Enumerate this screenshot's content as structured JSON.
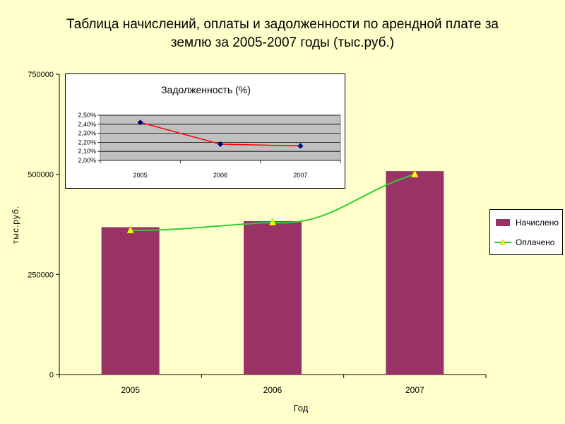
{
  "title": {
    "line1": "Таблица начислений, оплаты и задолженности по арендной плате за",
    "line2": "землю за 2005-2007 годы (тыс.руб.)"
  },
  "colors": {
    "background": "#ffffcc",
    "bar": "#993366",
    "line": "#33cc33",
    "marker": "#ffff00",
    "inset_line": "#ff0000",
    "inset_marker": "#000080",
    "inset_plot": "#c0c0c0"
  },
  "chart_data": [
    {
      "type": "bar",
      "categories": [
        "2005",
        "2006",
        "2007"
      ],
      "series": [
        {
          "name": "Начислено",
          "type": "bar",
          "values": [
            368000,
            383000,
            508000
          ]
        },
        {
          "name": "Оплачено",
          "type": "line",
          "values": [
            360000,
            380000,
            500000
          ]
        }
      ],
      "xlabel": "Год",
      "ylabel": "тыс.руб.",
      "ylim": [
        0,
        750000
      ],
      "yticks": [
        "0",
        "250000",
        "500000",
        "750000"
      ],
      "legend": "right"
    },
    {
      "type": "line",
      "title": "Задолженность (%)",
      "categories": [
        "2005",
        "2006",
        "2007"
      ],
      "series": [
        {
          "values": [
            2.42,
            2.18,
            2.16
          ]
        }
      ],
      "ylim": [
        2.0,
        2.5
      ],
      "yticks": [
        "2,00%",
        "2,10%",
        "2,20%",
        "2,30%",
        "2,40%",
        "2,50%"
      ],
      "grid": true
    }
  ]
}
